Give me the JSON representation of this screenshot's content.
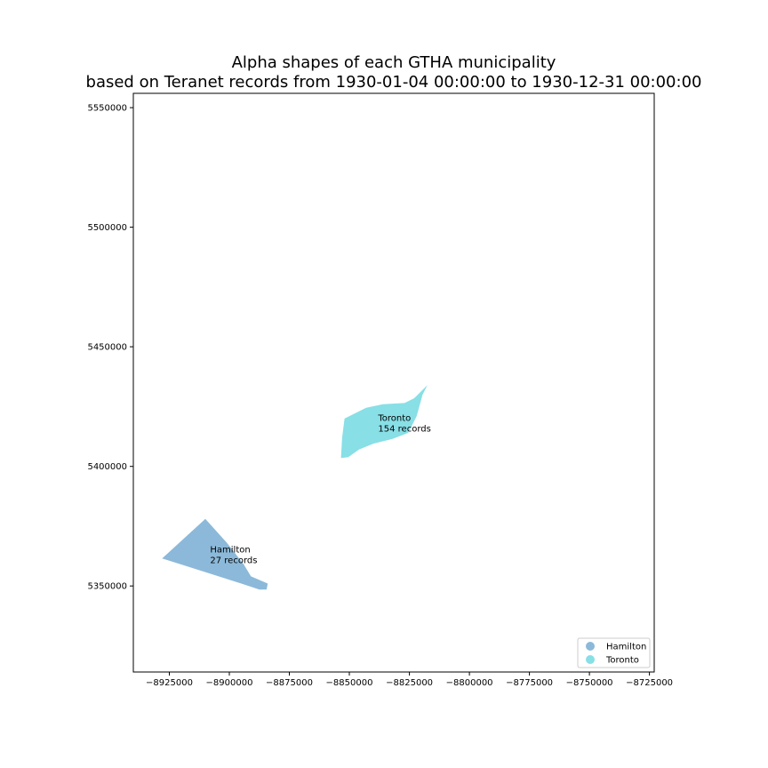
{
  "chart_data": {
    "type": "map",
    "title_lines": [
      "Alpha shapes of each GTHA municipality",
      "based on Teranet records from 1930-01-04 00:00:00 to 1930-12-31 00:00:00"
    ],
    "xlim": [
      -8940000,
      -8723000
    ],
    "ylim": [
      5314000,
      5556000
    ],
    "x_ticks": [
      -8925000,
      -8900000,
      -8875000,
      -8850000,
      -8825000,
      -8800000,
      -8775000,
      -8750000,
      -8725000
    ],
    "x_tick_labels": [
      "−8925000",
      "−8900000",
      "−8875000",
      "−8850000",
      "−8825000",
      "−8800000",
      "−8775000",
      "−8750000",
      "−8725000"
    ],
    "y_ticks": [
      5350000,
      5400000,
      5450000,
      5500000,
      5550000
    ],
    "y_tick_labels": [
      "5350000",
      "5400000",
      "5450000",
      "5500000",
      "5550000"
    ],
    "grid": false,
    "legend_position": "lower-right",
    "series": [
      {
        "name": "Hamilton",
        "color": "#8cb9d9",
        "annotation_lines": [
          "Hamilton",
          "27 records"
        ],
        "annotation_at": [
          -8908000,
          5364000
        ],
        "polygon": [
          [
            -8928000,
            5361500
          ],
          [
            -8910000,
            5378000
          ],
          [
            -8901000,
            5368000
          ],
          [
            -8894000,
            5359000
          ],
          [
            -8891000,
            5354000
          ],
          [
            -8884000,
            5351000
          ],
          [
            -8884500,
            5348500
          ],
          [
            -8887500,
            5348500
          ],
          [
            -8895000,
            5351000
          ]
        ]
      },
      {
        "name": "Toronto",
        "color": "#88dfe6",
        "annotation_lines": [
          "Toronto",
          "154 records"
        ],
        "annotation_at": [
          -8838000,
          5419000
        ],
        "polygon": [
          [
            -8852000,
            5420000
          ],
          [
            -8843000,
            5424500
          ],
          [
            -8836000,
            5426000
          ],
          [
            -8827000,
            5426500
          ],
          [
            -8823000,
            5428500
          ],
          [
            -8819000,
            5432500
          ],
          [
            -8817500,
            5434000
          ],
          [
            -8819500,
            5430000
          ],
          [
            -8822000,
            5421000
          ],
          [
            -8825500,
            5414000
          ],
          [
            -8832000,
            5411500
          ],
          [
            -8840000,
            5409500
          ],
          [
            -8846000,
            5407000
          ],
          [
            -8850500,
            5403800
          ],
          [
            -8853500,
            5403500
          ],
          [
            -8853000,
            5412000
          ]
        ]
      }
    ]
  }
}
